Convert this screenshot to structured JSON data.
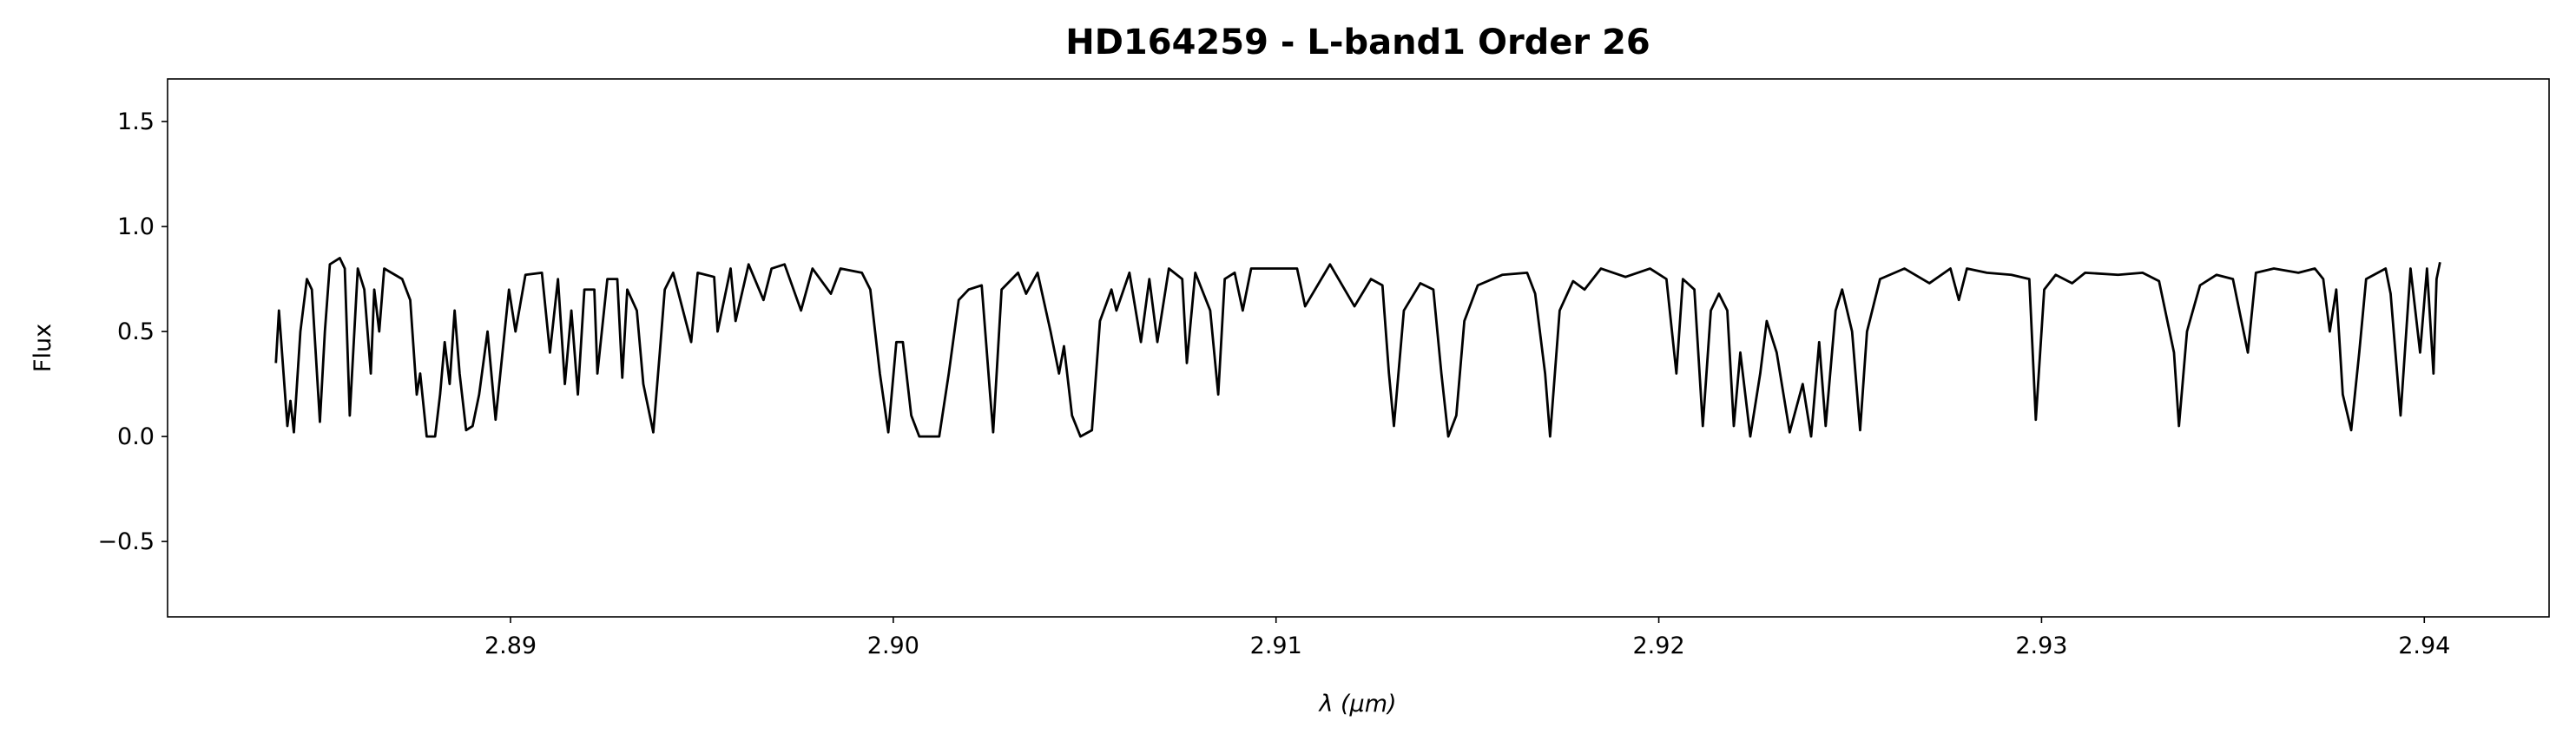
{
  "chart_data": {
    "type": "line",
    "title": "HD164259 - L-band1 Order 26",
    "xlabel": "λ (μm)",
    "ylabel": "Flux",
    "color": "#000000",
    "x": [
      2.88387,
      2.88395,
      2.88417,
      2.88425,
      2.88434,
      2.88451,
      2.88468,
      2.88481,
      2.88502,
      2.88515,
      2.88528,
      2.88554,
      2.88567,
      2.8858,
      2.88601,
      2.88618,
      2.88635,
      2.88644,
      2.88657,
      2.8867,
      2.88717,
      2.88738,
      2.88755,
      2.88764,
      2.88781,
      2.88803,
      2.88816,
      2.88828,
      2.88841,
      2.88854,
      2.88867,
      2.88884,
      2.88901,
      2.88918,
      2.8894,
      2.88961,
      2.88996,
      2.89013,
      2.89039,
      2.89082,
      2.89103,
      2.89124,
      2.89142,
      2.89159,
      2.89176,
      2.89193,
      2.89219,
      2.89227,
      2.89253,
      2.89279,
      2.89292,
      2.89305,
      2.8933,
      2.89347,
      2.89373,
      2.8939,
      2.89403,
      2.89425,
      2.89472,
      2.89489,
      2.89532,
      2.89541,
      2.89575,
      2.89588,
      2.89622,
      2.89661,
      2.89682,
      2.89716,
      2.89759,
      2.89789,
      2.89837,
      2.89862,
      2.89918,
      2.8994,
      2.89965,
      2.89987,
      2.90008,
      2.90025,
      2.90047,
      2.90068,
      2.9012,
      2.90145,
      2.90171,
      2.90197,
      2.90231,
      2.90253,
      2.90261,
      2.90283,
      2.90326,
      2.90347,
      2.90377,
      2.90411,
      2.90433,
      2.90446,
      2.90467,
      2.90489,
      2.90519,
      2.9054,
      2.9057,
      2.90583,
      2.90617,
      2.90647,
      2.90669,
      2.9069,
      2.9072,
      2.90755,
      2.90767,
      2.90789,
      2.90828,
      2.90849,
      2.90866,
      2.90892,
      2.90913,
      2.90935,
      2.91055,
      2.91076,
      2.91141,
      2.91205,
      2.91248,
      2.91278,
      2.91295,
      2.91308,
      2.91334,
      2.91377,
      2.91411,
      2.91432,
      2.9145,
      2.91471,
      2.91492,
      2.91527,
      2.91591,
      2.91656,
      2.91677,
      2.91703,
      2.91716,
      2.91741,
      2.91776,
      2.91806,
      2.91849,
      2.91913,
      2.91977,
      2.9202,
      2.92046,
      2.92063,
      2.92093,
      2.92115,
      2.92136,
      2.92157,
      2.92179,
      2.92196,
      2.92213,
      2.92239,
      2.92265,
      2.92282,
      2.92308,
      2.92342,
      2.92376,
      2.92398,
      2.92419,
      2.92436,
      2.92462,
      2.92479,
      2.92505,
      2.92526,
      2.92544,
      2.92578,
      2.92642,
      2.92707,
      2.92762,
      2.92784,
      2.92805,
      2.92857,
      2.92921,
      2.92968,
      2.92985,
      2.93007,
      2.93037,
      2.9308,
      2.93114,
      2.932,
      2.93264,
      2.93307,
      2.93346,
      2.93359,
      2.9338,
      2.93414,
      2.93457,
      2.935,
      2.93539,
      2.9356,
      2.93607,
      2.93671,
      2.93714,
      2.93736,
      2.93753,
      2.9377,
      2.93787,
      2.93809,
      2.9383,
      2.93848,
      2.93899,
      2.93912,
      2.93938,
      2.93964,
      2.93989,
      2.94007,
      2.94024,
      2.94032,
      2.94041
    ],
    "values": [
      0.35,
      0.6,
      0.05,
      0.17,
      0.02,
      0.5,
      0.75,
      0.7,
      0.07,
      0.5,
      0.82,
      0.85,
      0.8,
      0.1,
      0.8,
      0.7,
      0.3,
      0.7,
      0.5,
      0.8,
      0.75,
      0.65,
      0.2,
      0.3,
      0,
      0,
      0.2,
      0.45,
      0.25,
      0.6,
      0.3,
      0.03,
      0.05,
      0.2,
      0.5,
      0.08,
      0.7,
      0.5,
      0.77,
      0.78,
      0.4,
      0.75,
      0.25,
      0.6,
      0.2,
      0.7,
      0.7,
      0.3,
      0.75,
      0.75,
      0.28,
      0.7,
      0.6,
      0.25,
      0.02,
      0.4,
      0.7,
      0.78,
      0.45,
      0.78,
      0.76,
      0.5,
      0.8,
      0.55,
      0.82,
      0.65,
      0.8,
      0.82,
      0.6,
      0.8,
      0.68,
      0.8,
      0.78,
      0.7,
      0.3,
      0.02,
      0.45,
      0.45,
      0.1,
      0,
      0,
      0.3,
      0.65,
      0.7,
      0.72,
      0.2,
      0.02,
      0.7,
      0.78,
      0.68,
      0.78,
      0.5,
      0.3,
      0.43,
      0.1,
      0,
      0.03,
      0.55,
      0.7,
      0.6,
      0.78,
      0.45,
      0.75,
      0.45,
      0.8,
      0.75,
      0.35,
      0.78,
      0.6,
      0.2,
      0.75,
      0.78,
      0.6,
      0.8,
      0.8,
      0.62,
      0.82,
      0.62,
      0.75,
      0.72,
      0.3,
      0.05,
      0.6,
      0.73,
      0.7,
      0.3,
      0,
      0.1,
      0.55,
      0.72,
      0.77,
      0.78,
      0.68,
      0.3,
      0,
      0.6,
      0.74,
      0.7,
      0.8,
      0.76,
      0.8,
      0.75,
      0.3,
      0.75,
      0.7,
      0.05,
      0.6,
      0.68,
      0.6,
      0.05,
      0.4,
      0,
      0.3,
      0.55,
      0.4,
      0.02,
      0.25,
      0,
      0.45,
      0.05,
      0.6,
      0.7,
      0.5,
      0.03,
      0.5,
      0.75,
      0.8,
      0.73,
      0.8,
      0.65,
      0.8,
      0.78,
      0.77,
      0.75,
      0.08,
      0.7,
      0.77,
      0.73,
      0.78,
      0.77,
      0.78,
      0.74,
      0.4,
      0.05,
      0.5,
      0.72,
      0.77,
      0.75,
      0.4,
      0.78,
      0.8,
      0.78,
      0.8,
      0.75,
      0.5,
      0.7,
      0.2,
      0.03,
      0.4,
      0.75,
      0.8,
      0.68,
      0.1,
      0.8,
      0.4,
      0.8,
      0.3,
      0.75,
      0.83
    ],
    "xlim": [
      2.88104,
      2.94326
    ],
    "xticks": [
      2.89,
      {
        "value": 2.9,
        "label": "2.90"
      },
      2.91,
      2.92,
      2.93,
      2.94
    ],
    "ylim": [
      -0.859,
      1.703
    ],
    "yticks": [
      {
        "value": -0.5,
        "label": "−0.5"
      },
      {
        "value": 0,
        "label": "0.0"
      },
      0.5,
      {
        "value": 1,
        "label": "1.0"
      },
      1.5
    ],
    "grid": false
  }
}
